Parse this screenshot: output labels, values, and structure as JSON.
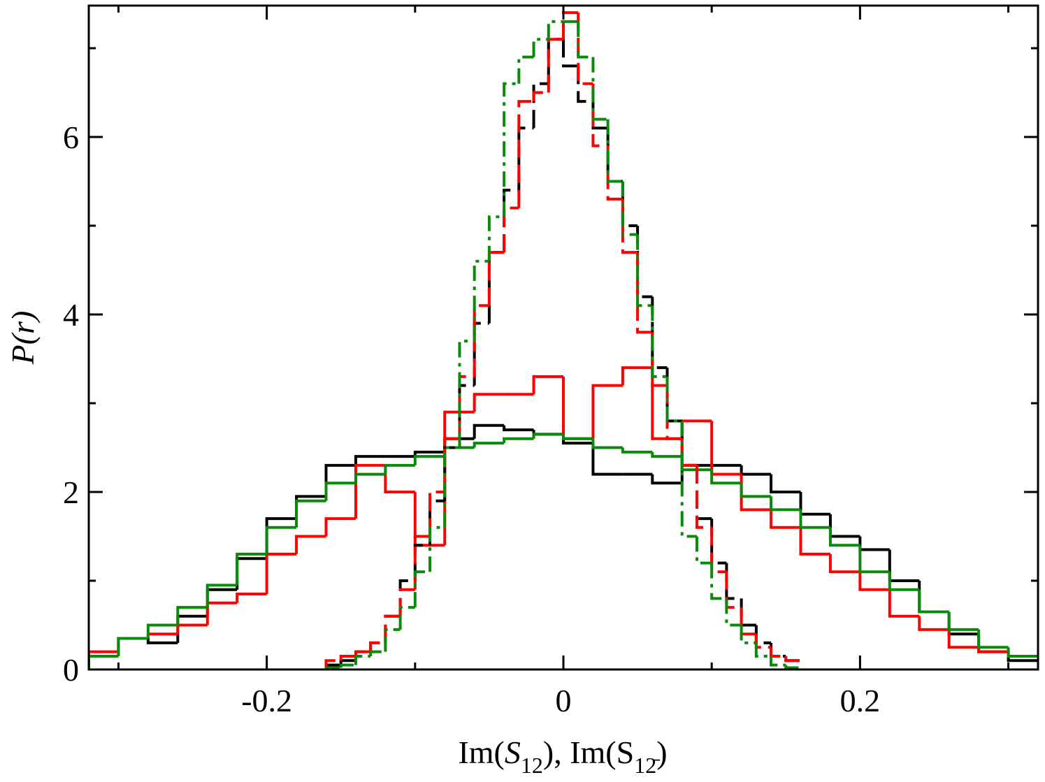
{
  "chart_data": {
    "type": "histogram",
    "xlabel": [
      "Im(",
      "S",
      "12",
      "), Im(S",
      "12̄",
      ")"
    ],
    "ylabel": "P(r)",
    "xlim": [
      -0.32,
      0.32
    ],
    "ylim": [
      0,
      7.48
    ],
    "xticks": [
      -0.2,
      0,
      0.2
    ],
    "yticks": [
      0,
      2,
      4,
      6
    ],
    "xminorticks": [
      -0.3,
      -0.1,
      0.1,
      0.3
    ],
    "yminorticks": [
      1,
      3,
      5,
      7
    ],
    "series": [
      {
        "color": "#000000",
        "dash": "solid",
        "bins": [
          -0.32,
          -0.3,
          -0.28,
          -0.26,
          -0.24,
          -0.22,
          -0.2,
          -0.18,
          -0.16,
          -0.14,
          -0.12,
          -0.1,
          -0.08,
          -0.06,
          -0.04,
          -0.02,
          0,
          0.02,
          0.04,
          0.06,
          0.08,
          0.1,
          0.12,
          0.14,
          0.16,
          0.18,
          0.2,
          0.22,
          0.24,
          0.26,
          0.28,
          0.3,
          0.32
        ],
        "values": [
          0.15,
          0.35,
          0.3,
          0.6,
          0.9,
          1.25,
          1.7,
          1.95,
          2.3,
          2.4,
          2.4,
          2.45,
          2.6,
          2.75,
          2.7,
          2.65,
          2.55,
          2.2,
          2.2,
          2.1,
          2.3,
          2.3,
          2.2,
          2.0,
          1.75,
          1.5,
          1.35,
          1.0,
          0.65,
          0.4,
          0.2,
          0.1
        ]
      },
      {
        "color": "#ff0000",
        "dash": "solid",
        "bins": [
          -0.32,
          -0.3,
          -0.28,
          -0.26,
          -0.24,
          -0.22,
          -0.2,
          -0.18,
          -0.16,
          -0.14,
          -0.12,
          -0.1,
          -0.08,
          -0.06,
          -0.04,
          -0.02,
          0,
          0.02,
          0.04,
          0.06,
          0.08,
          0.1,
          0.12,
          0.14,
          0.16,
          0.18,
          0.2,
          0.22,
          0.24,
          0.26,
          0.28,
          0.3,
          0.32
        ],
        "values": [
          0.2,
          0.35,
          0.4,
          0.5,
          0.75,
          0.85,
          1.3,
          1.5,
          1.7,
          2.3,
          2.0,
          1.4,
          2.9,
          3.1,
          3.1,
          3.3,
          2.6,
          3.2,
          3.4,
          2.6,
          2.8,
          2.2,
          1.8,
          1.6,
          1.3,
          1.1,
          0.9,
          0.6,
          0.45,
          0.25,
          0.2,
          0.15
        ]
      },
      {
        "color": "#0a8a0a",
        "dash": "solid",
        "bins": [
          -0.32,
          -0.3,
          -0.28,
          -0.26,
          -0.24,
          -0.22,
          -0.2,
          -0.18,
          -0.16,
          -0.14,
          -0.12,
          -0.1,
          -0.08,
          -0.06,
          -0.04,
          -0.02,
          0,
          0.02,
          0.04,
          0.06,
          0.08,
          0.1,
          0.12,
          0.14,
          0.16,
          0.18,
          0.2,
          0.22,
          0.24,
          0.26,
          0.28,
          0.3,
          0.32
        ],
        "values": [
          0.15,
          0.35,
          0.5,
          0.7,
          0.95,
          1.3,
          1.6,
          1.9,
          2.1,
          2.2,
          2.3,
          2.4,
          2.5,
          2.55,
          2.6,
          2.65,
          2.6,
          2.5,
          2.45,
          2.4,
          2.25,
          2.1,
          1.95,
          1.8,
          1.6,
          1.4,
          1.1,
          0.9,
          0.65,
          0.45,
          0.25,
          0.15
        ]
      },
      {
        "color": "#000000",
        "dash": "dashed",
        "bins": [
          -0.16,
          -0.15,
          -0.14,
          -0.13,
          -0.12,
          -0.11,
          -0.1,
          -0.09,
          -0.08,
          -0.07,
          -0.06,
          -0.05,
          -0.04,
          -0.03,
          -0.02,
          -0.01,
          0,
          0.01,
          0.02,
          0.03,
          0.04,
          0.05,
          0.06,
          0.07,
          0.08,
          0.09,
          0.1,
          0.11,
          0.12,
          0.13,
          0.14,
          0.15,
          0.16
        ],
        "values": [
          0.05,
          0.1,
          0.2,
          0.3,
          0.6,
          1.0,
          1.4,
          1.9,
          2.5,
          3.2,
          3.9,
          4.7,
          5.4,
          6.1,
          6.6,
          7.1,
          6.8,
          6.4,
          6.1,
          5.5,
          5.0,
          4.2,
          3.4,
          2.8,
          2.3,
          1.7,
          1.2,
          0.8,
          0.5,
          0.3,
          0.15,
          0.1
        ]
      },
      {
        "color": "#ff0000",
        "dash": "dashed",
        "bins": [
          -0.16,
          -0.15,
          -0.14,
          -0.13,
          -0.12,
          -0.11,
          -0.1,
          -0.09,
          -0.08,
          -0.07,
          -0.06,
          -0.05,
          -0.04,
          -0.03,
          -0.02,
          -0.01,
          0,
          0.01,
          0.02,
          0.03,
          0.04,
          0.05,
          0.06,
          0.07,
          0.08,
          0.09,
          0.1,
          0.11,
          0.12,
          0.13,
          0.14,
          0.15,
          0.16
        ],
        "values": [
          0.1,
          0.15,
          0.2,
          0.3,
          0.6,
          0.9,
          1.5,
          2.0,
          2.6,
          3.3,
          4.1,
          4.7,
          5.2,
          6.4,
          6.5,
          7.1,
          7.4,
          6.6,
          5.9,
          5.3,
          4.7,
          3.8,
          3.2,
          2.6,
          2.3,
          1.6,
          1.1,
          0.7,
          0.4,
          0.25,
          0.15,
          0.1
        ]
      },
      {
        "color": "#0a8a0a",
        "dash": "dashdot",
        "bins": [
          -0.16,
          -0.15,
          -0.14,
          -0.13,
          -0.12,
          -0.11,
          -0.1,
          -0.09,
          -0.08,
          -0.07,
          -0.06,
          -0.05,
          -0.04,
          -0.03,
          -0.02,
          -0.01,
          0,
          0.01,
          0.02,
          0.03,
          0.04,
          0.05,
          0.06,
          0.07,
          0.08,
          0.09,
          0.1,
          0.11,
          0.12,
          0.13,
          0.14,
          0.15,
          0.16
        ],
        "values": [
          0.02,
          0.05,
          0.15,
          0.2,
          0.45,
          0.7,
          1.1,
          1.6,
          2.5,
          3.7,
          4.6,
          5.1,
          6.6,
          6.9,
          7.1,
          7.3,
          7.3,
          6.9,
          6.2,
          5.5,
          4.9,
          4.1,
          3.3,
          2.8,
          1.5,
          1.2,
          0.8,
          0.5,
          0.3,
          0.15,
          0.05,
          0.02
        ]
      }
    ]
  }
}
